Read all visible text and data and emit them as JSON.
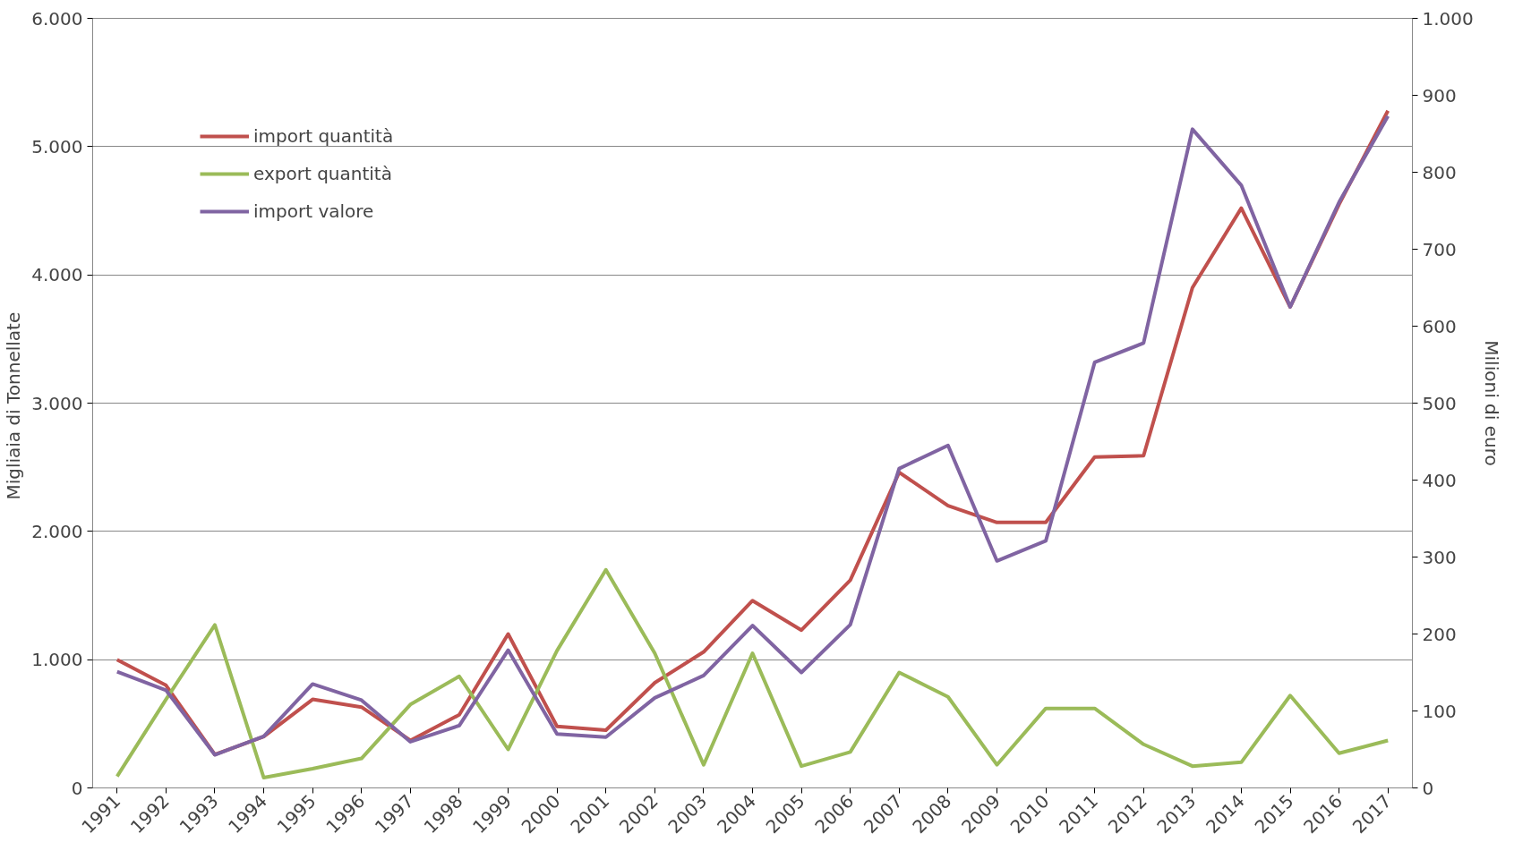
{
  "chart_data": {
    "type": "line",
    "ylabel": "Migliaia  di Tonnellate",
    "y2label": "Milioni di euro",
    "categories": [
      "1991",
      "1992",
      "1993",
      "1994",
      "1995",
      "1996",
      "1997",
      "1998",
      "1999",
      "2000",
      "2001",
      "2002",
      "2003",
      "2004",
      "2005",
      "2006",
      "2007",
      "2008",
      "2009",
      "2010",
      "2011",
      "2012",
      "2013",
      "2014",
      "2015",
      "2016",
      "2017"
    ],
    "series": [
      {
        "name": "import quantità",
        "color": "#c0504d",
        "values": [
          1000,
          800,
          260,
          400,
          690,
          630,
          370,
          570,
          1200,
          480,
          450,
          820,
          1060,
          1460,
          1230,
          1620,
          2460,
          2200,
          2070,
          2070,
          2580,
          2590,
          3900,
          4520,
          3750,
          4550,
          5280
        ]
      },
      {
        "name": "export quantità",
        "color": "#9bbb59",
        "values": [
          90,
          690,
          1270,
          80,
          150,
          230,
          650,
          870,
          300,
          1070,
          1700,
          1050,
          180,
          1050,
          170,
          280,
          900,
          710,
          180,
          620,
          620,
          340,
          170,
          200,
          720,
          270,
          370
        ]
      },
      {
        "name": "import valore",
        "color": "#8064a2",
        "axis": "y2",
        "values": [
          151,
          127,
          43,
          67,
          135,
          114,
          60,
          81,
          179,
          70,
          66,
          117,
          146,
          211,
          150,
          212,
          415,
          445,
          295,
          321,
          553,
          578,
          856,
          783,
          625,
          761,
          873
        ]
      }
    ],
    "ylim": [
      0,
      6000
    ],
    "yticks": [
      0,
      {
        "value": 1000,
        "label": "1.000"
      },
      {
        "value": 2000,
        "label": "2.000"
      },
      {
        "value": 3000,
        "label": "3.000"
      },
      {
        "value": 4000,
        "label": "4.000"
      },
      {
        "value": 5000,
        "label": "5.000"
      },
      {
        "value": 6000,
        "label": "6.000"
      }
    ],
    "y2lim": [
      0,
      1000
    ],
    "y2ticks": [
      0,
      100,
      200,
      300,
      400,
      500,
      600,
      700,
      800,
      900,
      {
        "value": 1000,
        "label": "1.000"
      }
    ],
    "grid": "y",
    "legend": "top left",
    "marker": "none",
    "line_style": "solid"
  }
}
